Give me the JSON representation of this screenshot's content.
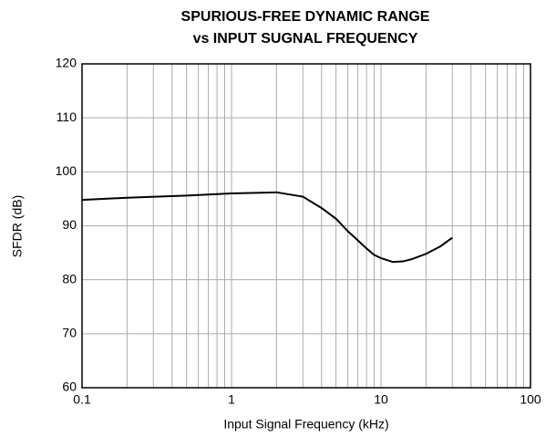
{
  "chart_data": {
    "type": "line",
    "title": [
      "SPURIOUS-FREE DYNAMIC RANGE",
      "vs INPUT SUGNAL FREQUENCY"
    ],
    "xlabel": "Input Signal Frequency (kHz)",
    "ylabel": "SFDR (dB)",
    "x": [
      0.1,
      0.2,
      0.5,
      1,
      2,
      3,
      4,
      5,
      6,
      7,
      8,
      9,
      10,
      12,
      14,
      16,
      20,
      25,
      30
    ],
    "values": [
      94.8,
      95.2,
      95.6,
      96.0,
      96.2,
      95.4,
      93.3,
      91.3,
      89.0,
      87.3,
      85.8,
      84.6,
      84.0,
      83.3,
      83.4,
      83.8,
      84.8,
      86.2,
      87.8
    ],
    "color": "#000000",
    "xscale": "log",
    "xlim": [
      0.1,
      100
    ],
    "xticks": [
      0.1,
      1,
      10,
      100
    ],
    "xminorticks": [
      0.2,
      0.3,
      0.4,
      0.5,
      0.6,
      0.7,
      0.8,
      0.9,
      2,
      3,
      4,
      5,
      6,
      7,
      8,
      9,
      20,
      30,
      40,
      50,
      60,
      70,
      80,
      90
    ],
    "ylim": [
      60,
      120
    ],
    "yticks": [
      60,
      70,
      80,
      90,
      100,
      110,
      120
    ],
    "grid": true
  }
}
